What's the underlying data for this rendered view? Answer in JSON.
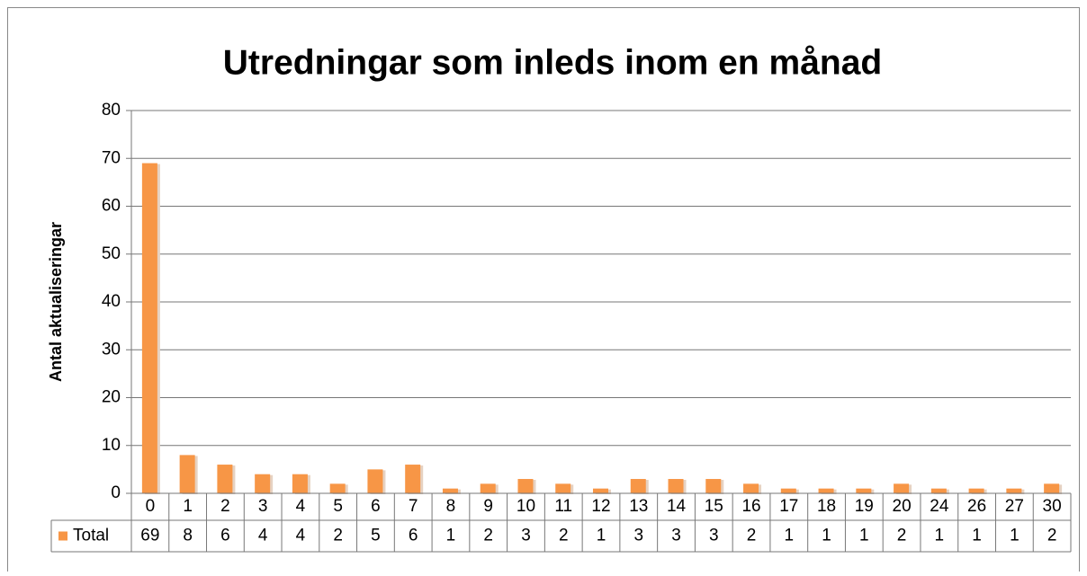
{
  "chart_data": {
    "type": "bar",
    "title": "Utredningar som inleds inom en månad",
    "y_label": "Antal aktualiseringar",
    "categories": [
      "0",
      "1",
      "2",
      "3",
      "4",
      "5",
      "6",
      "7",
      "8",
      "9",
      "10",
      "11",
      "12",
      "13",
      "14",
      "15",
      "16",
      "17",
      "18",
      "19",
      "20",
      "24",
      "26",
      "27",
      "30"
    ],
    "series": [
      {
        "name": "Total",
        "color": "#f79646",
        "values": [
          69,
          8,
          6,
          4,
          4,
          2,
          5,
          6,
          1,
          2,
          3,
          2,
          1,
          3,
          3,
          3,
          2,
          1,
          1,
          1,
          2,
          1,
          1,
          1,
          2
        ]
      }
    ],
    "ylim": [
      0,
      80
    ],
    "yticks": [
      0,
      10,
      20,
      30,
      40,
      50,
      60,
      70,
      80
    ],
    "grid": true,
    "data_table": true
  }
}
